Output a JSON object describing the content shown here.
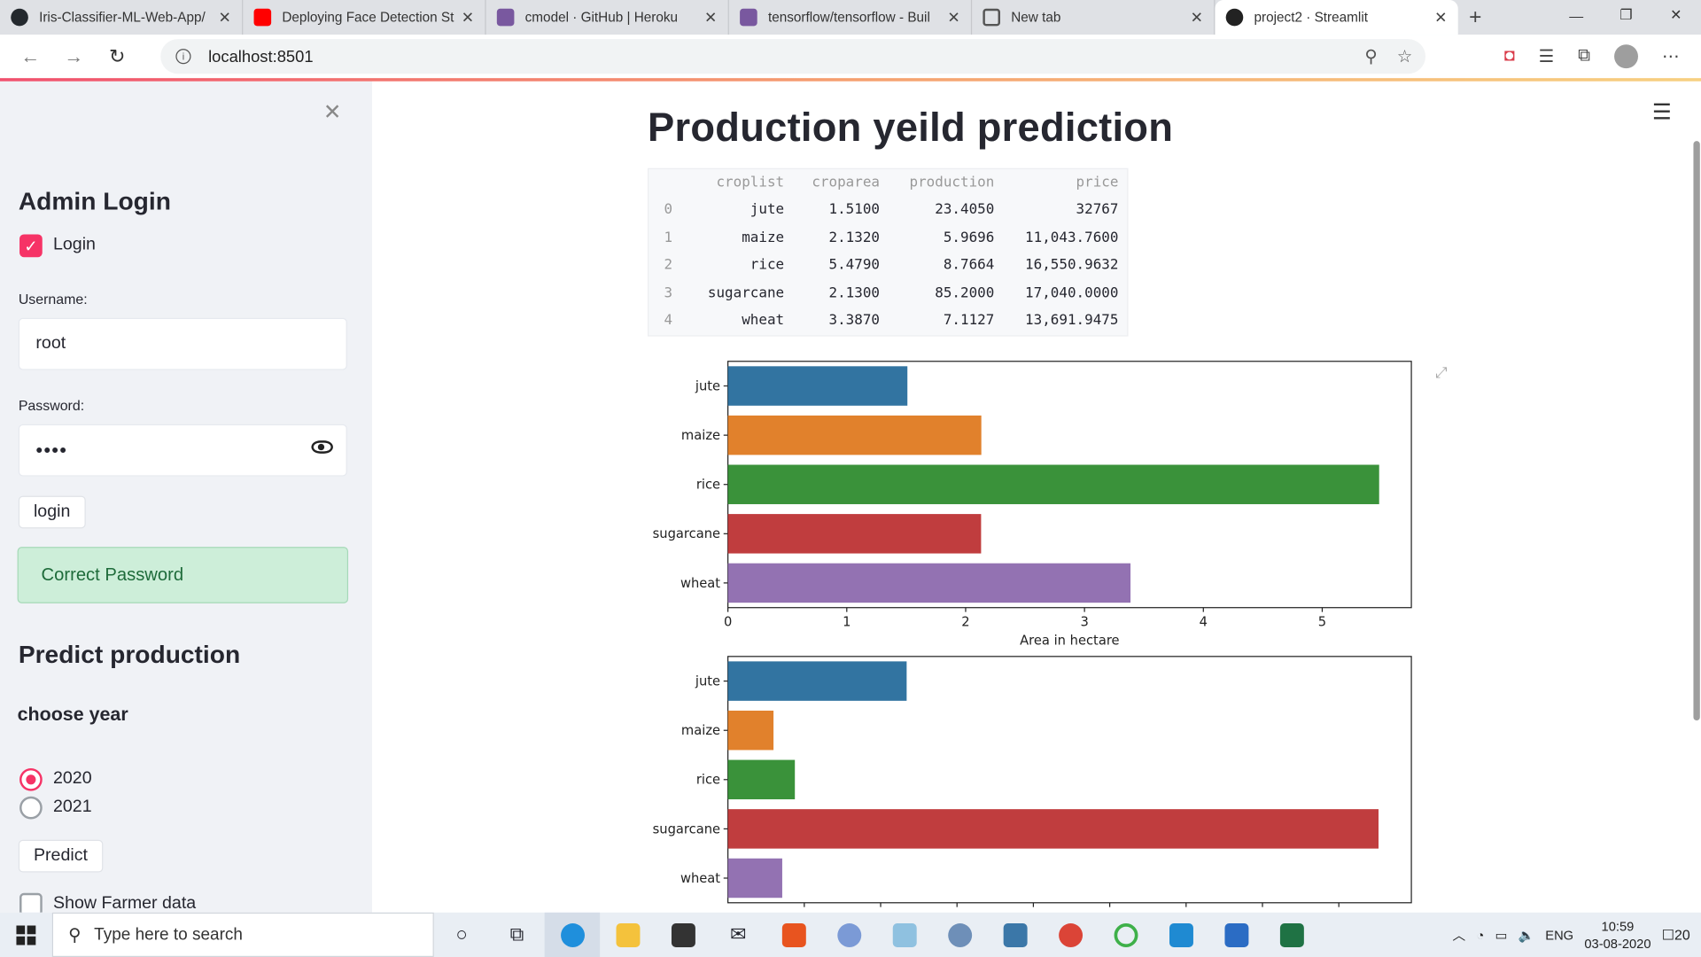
{
  "browser": {
    "tabs": [
      {
        "title": "Iris-Classifier-ML-Web-App/",
        "favicon_color": "#24292e"
      },
      {
        "title": "Deploying Face Detection St",
        "favicon_color": "#ff0000"
      },
      {
        "title": "cmodel · GitHub | Heroku",
        "favicon_color": "#79589f"
      },
      {
        "title": "tensorflow/tensorflow - Buil",
        "favicon_color": "#79589f"
      },
      {
        "title": "New tab",
        "favicon_color": "#555555"
      },
      {
        "title": "project2 · Streamlit",
        "favicon_color": "#222222"
      }
    ],
    "url": "localhost:8501"
  },
  "sidebar": {
    "admin_title": "Admin Login",
    "login_checkbox_label": "Login",
    "username_label": "Username:",
    "username_value": "root",
    "password_label": "Password:",
    "password_value": "••••",
    "login_button": "login",
    "success_message": "Correct Password",
    "predict_title": "Predict production",
    "choose_year_label": "choose year",
    "years": [
      "2020",
      "2021"
    ],
    "selected_year": "2020",
    "predict_button": "Predict",
    "farmer_checkbox_label": "Show Farmer data"
  },
  "main": {
    "title": "Production yeild prediction",
    "table": {
      "columns": [
        "croplist",
        "croparea",
        "production",
        "price"
      ],
      "rows": [
        {
          "idx": "0",
          "croplist": "jute",
          "croparea": "1.5100",
          "production": "23.4050",
          "price": "32767"
        },
        {
          "idx": "1",
          "croplist": "maize",
          "croparea": "2.1320",
          "production": "5.9696",
          "price": "11,043.7600"
        },
        {
          "idx": "2",
          "croplist": "rice",
          "croparea": "5.4790",
          "production": "8.7664",
          "price": "16,550.9632"
        },
        {
          "idx": "3",
          "croplist": "sugarcane",
          "croparea": "2.1300",
          "production": "85.2000",
          "price": "17,040.0000"
        },
        {
          "idx": "4",
          "croplist": "wheat",
          "croparea": "3.3870",
          "production": "7.1127",
          "price": "13,691.9475"
        }
      ]
    }
  },
  "chart_data": [
    {
      "type": "bar",
      "orientation": "horizontal",
      "categories": [
        "jute",
        "maize",
        "rice",
        "sugarcane",
        "wheat"
      ],
      "values": [
        1.51,
        2.132,
        5.479,
        2.13,
        3.387
      ],
      "colors": [
        "#3274a1",
        "#e1812c",
        "#3a923a",
        "#c03d3e",
        "#9372b2"
      ],
      "xlabel": "Area in hectare",
      "xlim": [
        0,
        5.75
      ],
      "xticks": [
        "0",
        "1",
        "2",
        "3",
        "4",
        "5"
      ]
    },
    {
      "type": "bar",
      "orientation": "horizontal",
      "categories": [
        "jute",
        "maize",
        "rice",
        "sugarcane",
        "wheat"
      ],
      "values": [
        23.405,
        5.9696,
        8.7664,
        85.2,
        7.1127
      ],
      "colors": [
        "#3274a1",
        "#e1812c",
        "#3a923a",
        "#c03d3e",
        "#9372b2"
      ],
      "xlim": [
        0,
        89.5
      ]
    }
  ],
  "taskbar": {
    "search_placeholder": "Type here to search",
    "lang": "ENG",
    "time": "10:59",
    "date": "03-08-2020",
    "notifications": "20"
  }
}
